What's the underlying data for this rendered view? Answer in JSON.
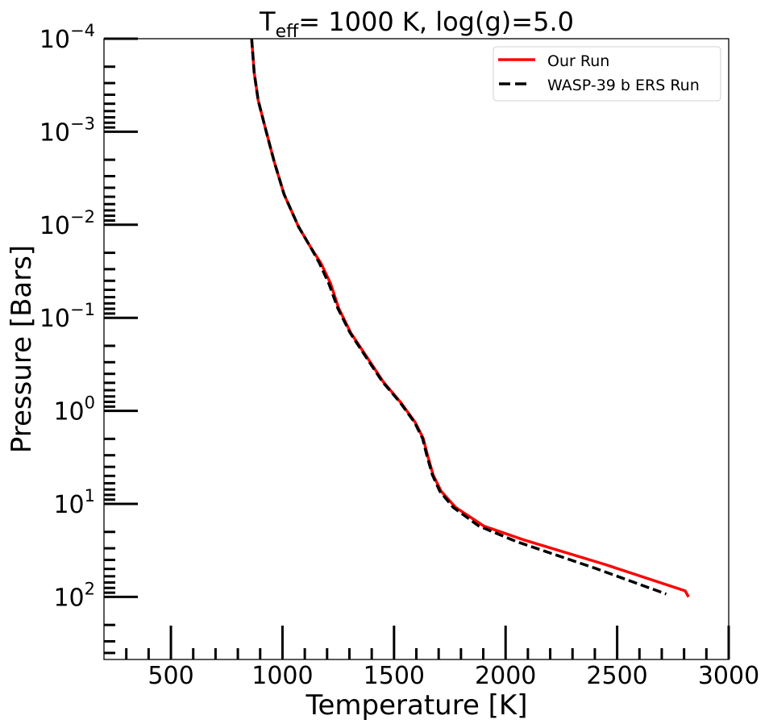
{
  "chart_data": {
    "type": "line",
    "title": "T_eff= 1000 K, log(g)=5.0",
    "title_parts": {
      "main": "T",
      "sub": "eff",
      "rest": "= 1000 K, log(g)=5.0"
    },
    "xlabel": "Temperature [K]",
    "ylabel": "Pressure [Bars]",
    "xlim": [
      200,
      3000
    ],
    "ylim": [
      470,
      0.0001
    ],
    "yscale": "log",
    "y_inverted": true,
    "x_ticks": [
      500,
      1000,
      1500,
      2000,
      2500,
      3000
    ],
    "x_tick_labels": [
      "500",
      "1000",
      "1500",
      "2000",
      "2500",
      "3000"
    ],
    "y_ticks": [
      0.0001,
      0.001,
      0.01,
      0.1,
      1,
      10,
      100
    ],
    "y_tick_labels": [
      {
        "base": "10",
        "exp": "−4"
      },
      {
        "base": "10",
        "exp": "−3"
      },
      {
        "base": "10",
        "exp": "−2"
      },
      {
        "base": "10",
        "exp": "−1"
      },
      {
        "base": "10",
        "exp": "0"
      },
      {
        "base": "10",
        "exp": "1"
      },
      {
        "base": "10",
        "exp": "2"
      }
    ],
    "grid": false,
    "legend_position": "upper right",
    "series": [
      {
        "name": "Our Run",
        "color": "#ff0000",
        "style": "solid",
        "points": [
          [
            862,
            0.0001
          ],
          [
            873,
            0.00023
          ],
          [
            891,
            0.00046
          ],
          [
            927,
            0.00099
          ],
          [
            963,
            0.0021
          ],
          [
            1007,
            0.0047
          ],
          [
            1072,
            0.0105
          ],
          [
            1126,
            0.0174
          ],
          [
            1173,
            0.026
          ],
          [
            1216,
            0.043
          ],
          [
            1252,
            0.079
          ],
          [
            1306,
            0.145
          ],
          [
            1379,
            0.265
          ],
          [
            1451,
            0.485
          ],
          [
            1530,
            0.81
          ],
          [
            1595,
            1.33
          ],
          [
            1631,
            1.98
          ],
          [
            1649,
            2.94
          ],
          [
            1675,
            4.87
          ],
          [
            1711,
            7.3
          ],
          [
            1776,
            10.9
          ],
          [
            1902,
            17.3
          ],
          [
            2082,
            24.4
          ],
          [
            2444,
            44.6
          ],
          [
            2805,
            86
          ],
          [
            2820,
            100
          ]
        ]
      },
      {
        "name": "WASP-39 b ERS Run",
        "color": "#000000",
        "style": "dashed",
        "points": [
          [
            862,
            0.0001
          ],
          [
            873,
            0.00023
          ],
          [
            891,
            0.00046
          ],
          [
            927,
            0.00099
          ],
          [
            963,
            0.0021
          ],
          [
            1007,
            0.0047
          ],
          [
            1072,
            0.0105
          ],
          [
            1126,
            0.0174
          ],
          [
            1166,
            0.026
          ],
          [
            1208,
            0.043
          ],
          [
            1248,
            0.079
          ],
          [
            1303,
            0.145
          ],
          [
            1375,
            0.265
          ],
          [
            1448,
            0.485
          ],
          [
            1527,
            0.81
          ],
          [
            1592,
            1.33
          ],
          [
            1628,
            1.98
          ],
          [
            1646,
            2.94
          ],
          [
            1672,
            4.87
          ],
          [
            1705,
            7.3
          ],
          [
            1765,
            10.9
          ],
          [
            1880,
            17.3
          ],
          [
            2050,
            25.5
          ],
          [
            2400,
            49
          ],
          [
            2720,
            93
          ]
        ]
      }
    ]
  },
  "legend": {
    "items": [
      {
        "label": "Our Run",
        "color": "#ff0000",
        "style": "solid"
      },
      {
        "label": "WASP-39 b ERS Run",
        "color": "#000000",
        "style": "dashed"
      }
    ]
  }
}
